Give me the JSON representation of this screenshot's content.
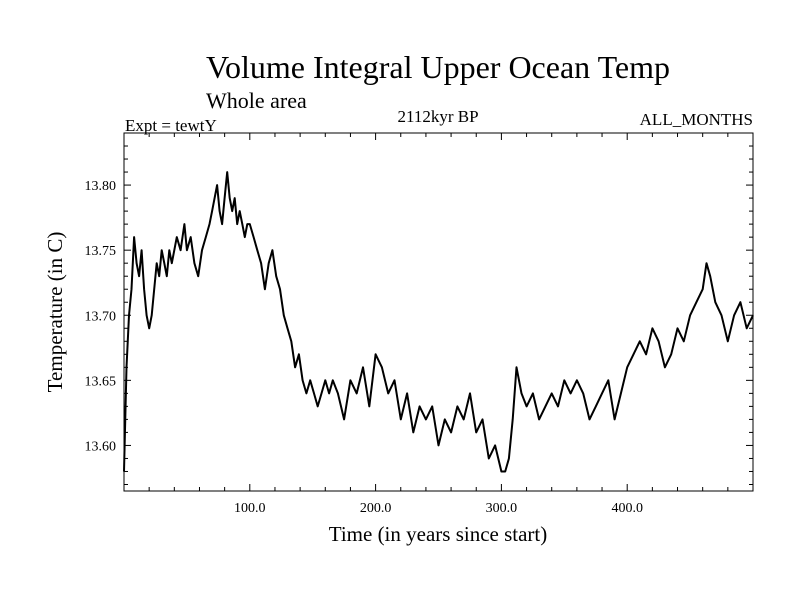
{
  "chart_data": {
    "type": "line",
    "title": "Volume Integral Upper Ocean Temp",
    "subtitle": "Whole area",
    "left_label": "Expt = tewtY",
    "center_label": "2112kyr BP",
    "right_label": "ALL_MONTHS",
    "xlabel": "Time (in years since start)",
    "ylabel": "Temperature (in C)",
    "xlim": [
      0,
      500
    ],
    "ylim": [
      13.565,
      13.84
    ],
    "x_ticks": [
      {
        "value": 100,
        "label": "100.0"
      },
      {
        "value": 200,
        "label": "200.0"
      },
      {
        "value": 300,
        "label": "300.0"
      },
      {
        "value": 400,
        "label": "400.0"
      }
    ],
    "y_ticks": [
      {
        "value": 13.6,
        "label": "13.60"
      },
      {
        "value": 13.65,
        "label": "13.65"
      },
      {
        "value": 13.7,
        "label": "13.70"
      },
      {
        "value": 13.75,
        "label": "13.75"
      },
      {
        "value": 13.8,
        "label": "13.80"
      }
    ],
    "series": [
      {
        "name": "Volume Integral Upper Ocean Temp",
        "color": "#000000",
        "x": [
          0,
          2,
          4,
          6,
          8,
          10,
          12,
          14,
          16,
          18,
          20,
          22,
          24,
          26,
          28,
          30,
          32,
          34,
          36,
          38,
          40,
          42,
          45,
          48,
          50,
          53,
          56,
          59,
          62,
          65,
          68,
          70,
          72,
          74,
          76,
          78,
          80,
          82,
          84,
          86,
          88,
          90,
          92,
          94,
          96,
          98,
          100,
          103,
          106,
          109,
          112,
          115,
          118,
          121,
          124,
          127,
          130,
          133,
          136,
          139,
          142,
          145,
          148,
          151,
          154,
          157,
          160,
          163,
          166,
          170,
          175,
          180,
          185,
          190,
          195,
          200,
          205,
          210,
          215,
          220,
          225,
          230,
          235,
          240,
          245,
          250,
          255,
          260,
          265,
          270,
          275,
          280,
          285,
          290,
          295,
          300,
          303,
          306,
          309,
          312,
          316,
          320,
          325,
          330,
          335,
          340,
          345,
          350,
          355,
          360,
          365,
          370,
          375,
          380,
          385,
          390,
          395,
          400,
          405,
          410,
          415,
          420,
          425,
          430,
          435,
          440,
          445,
          450,
          455,
          460,
          463,
          466,
          470,
          475,
          480,
          485,
          490,
          495,
          500
        ],
        "values": [
          13.58,
          13.66,
          13.7,
          13.72,
          13.76,
          13.74,
          13.73,
          13.75,
          13.72,
          13.7,
          13.69,
          13.7,
          13.72,
          13.74,
          13.73,
          13.75,
          13.74,
          13.73,
          13.75,
          13.74,
          13.75,
          13.76,
          13.75,
          13.77,
          13.75,
          13.76,
          13.74,
          13.73,
          13.75,
          13.76,
          13.77,
          13.78,
          13.79,
          13.8,
          13.78,
          13.77,
          13.79,
          13.81,
          13.79,
          13.78,
          13.79,
          13.77,
          13.78,
          13.77,
          13.76,
          13.77,
          13.77,
          13.76,
          13.75,
          13.74,
          13.72,
          13.74,
          13.75,
          13.73,
          13.72,
          13.7,
          13.69,
          13.68,
          13.66,
          13.67,
          13.65,
          13.64,
          13.65,
          13.64,
          13.63,
          13.64,
          13.65,
          13.64,
          13.65,
          13.64,
          13.62,
          13.65,
          13.64,
          13.66,
          13.63,
          13.67,
          13.66,
          13.64,
          13.65,
          13.62,
          13.64,
          13.61,
          13.63,
          13.62,
          13.63,
          13.6,
          13.62,
          13.61,
          13.63,
          13.62,
          13.64,
          13.61,
          13.62,
          13.59,
          13.6,
          13.58,
          13.58,
          13.59,
          13.62,
          13.66,
          13.64,
          13.63,
          13.64,
          13.62,
          13.63,
          13.64,
          13.63,
          13.65,
          13.64,
          13.65,
          13.64,
          13.62,
          13.63,
          13.64,
          13.65,
          13.62,
          13.64,
          13.66,
          13.67,
          13.68,
          13.67,
          13.69,
          13.68,
          13.66,
          13.67,
          13.69,
          13.68,
          13.7,
          13.71,
          13.72,
          13.74,
          13.73,
          13.71,
          13.7,
          13.68,
          13.7,
          13.71,
          13.69,
          13.7
        ]
      }
    ]
  }
}
